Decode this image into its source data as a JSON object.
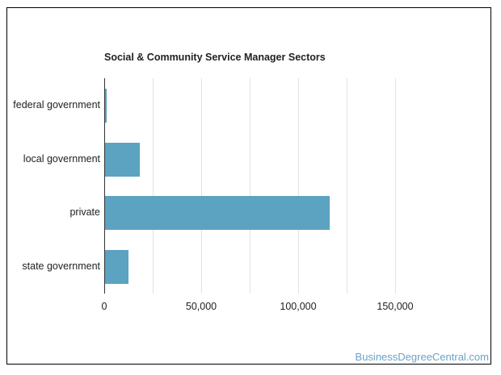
{
  "chart_data": {
    "type": "bar",
    "orientation": "horizontal",
    "title": "Social & Community Service Manager Sectors",
    "categories": [
      "federal government",
      "local government",
      "private",
      "state government"
    ],
    "values": [
      1200,
      18500,
      116400,
      12600
    ],
    "xlabel": "",
    "ylabel": "",
    "xlim": [
      0,
      175000
    ],
    "x_ticks": [
      0,
      50000,
      100000,
      150000
    ],
    "x_tick_labels": [
      "0",
      "50,000",
      "100,000",
      "150,000"
    ],
    "grid": true,
    "legend": null,
    "bar_color": "#5ba3c0"
  },
  "watermark": "BusinessDegreeCentral.com"
}
